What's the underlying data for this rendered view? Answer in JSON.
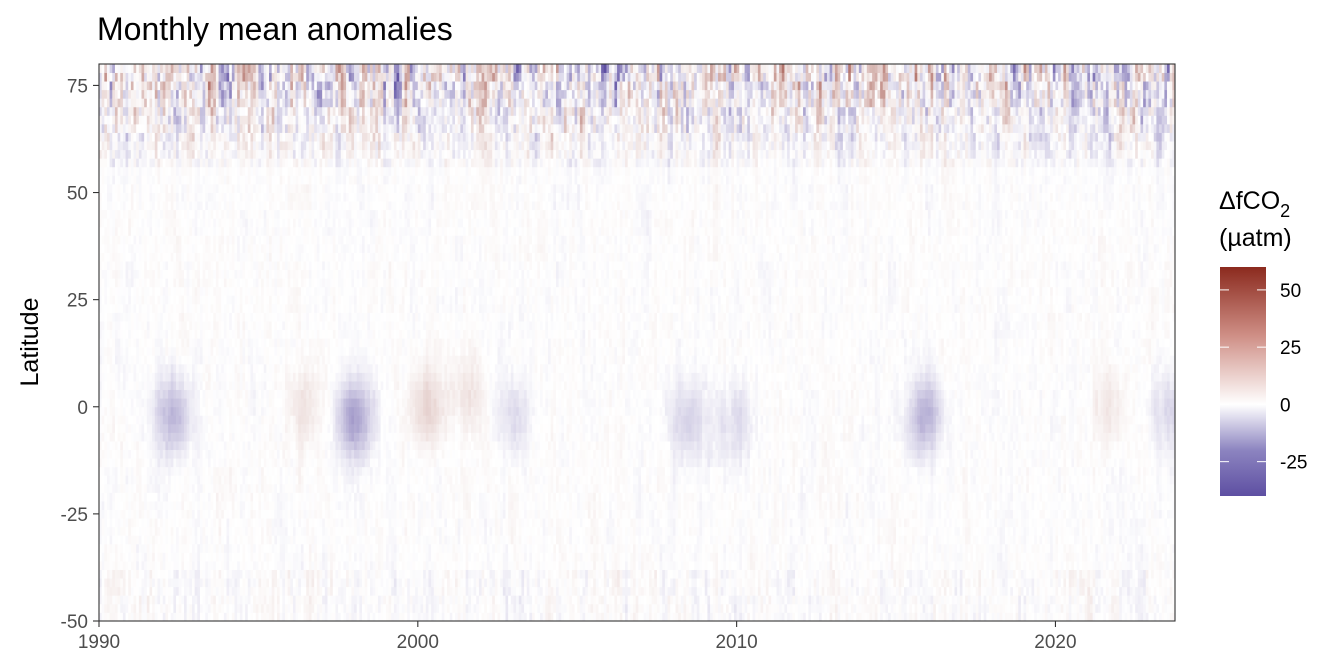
{
  "chart_data": {
    "type": "heatmap",
    "title": "Monthly mean anomalies",
    "xlabel": "",
    "ylabel": "Latitude",
    "x_range": [
      1990,
      2023.75
    ],
    "y_range": [
      -50,
      80
    ],
    "x_ticks": [
      1990,
      2000,
      2010,
      2020
    ],
    "y_ticks": [
      75,
      50,
      25,
      0,
      -25,
      -50
    ],
    "x_tick_labels": [
      "1990",
      "2000",
      "2010",
      "2020"
    ],
    "y_tick_labels": [
      "75",
      "50",
      "25",
      "0",
      "-25",
      "-50"
    ],
    "grid": false,
    "legend": {
      "title": "ΔfCO",
      "title_subscript": "2",
      "units": "(µatm)",
      "placement": "right",
      "range": [
        -40,
        60
      ],
      "breaks": [
        50,
        25,
        0,
        -25
      ],
      "break_labels": [
        "50",
        "25",
        "0",
        "-25"
      ],
      "colors": {
        "low": "#5e4fa2",
        "mid": "#ffffff",
        "high": "#8b2a1e"
      }
    },
    "equatorial_anomalies": [
      {
        "period": 1992.3,
        "latitude": -2,
        "value": -16
      },
      {
        "period": 1998.0,
        "latitude": -3,
        "value": -22
      },
      {
        "period": 1996.5,
        "latitude": 0,
        "value": 8
      },
      {
        "period": 2000.3,
        "latitude": 0,
        "value": 12
      },
      {
        "period": 2001.6,
        "latitude": 3,
        "value": 8
      },
      {
        "period": 2003.0,
        "latitude": -2,
        "value": -8
      },
      {
        "period": 2008.5,
        "latitude": -3,
        "value": -10
      },
      {
        "period": 2010.0,
        "latitude": -4,
        "value": -8
      },
      {
        "period": 2015.9,
        "latitude": -2,
        "value": -18
      },
      {
        "period": 2021.7,
        "latitude": 0,
        "value": 6
      },
      {
        "period": 2023.6,
        "latitude": -1,
        "value": -10
      }
    ]
  }
}
